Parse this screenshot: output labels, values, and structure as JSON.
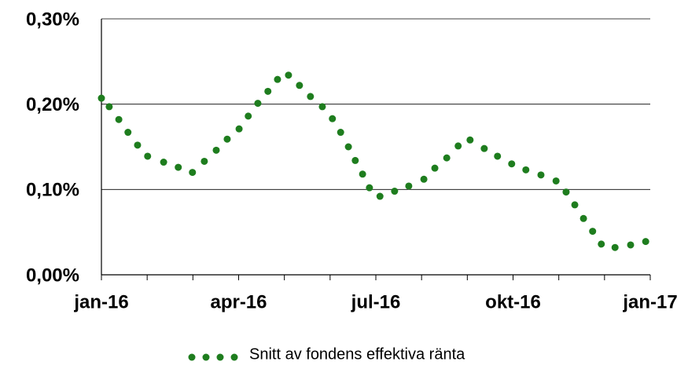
{
  "chart_data": {
    "type": "scatter",
    "xlim": [
      0,
      12
    ],
    "xticks": [
      {
        "value": 0,
        "label": "jan-16"
      },
      1,
      2,
      {
        "value": 3,
        "label": "apr-16"
      },
      4,
      5,
      {
        "value": 6,
        "label": "jul-16"
      },
      7,
      8,
      {
        "value": 9,
        "label": "okt-16"
      },
      10,
      11,
      {
        "value": 12,
        "label": "jan-17"
      }
    ],
    "ylim": [
      0,
      0.3
    ],
    "yticks": [
      {
        "value": 0,
        "label": "0,00%"
      },
      {
        "value": 0.1,
        "label": "0,10%"
      },
      {
        "value": 0.2,
        "label": "0,20%"
      },
      {
        "value": 0.3,
        "label": "0,30%"
      }
    ],
    "grid": true,
    "series": [
      {
        "name": "Snitt av fondens effektiva ränta",
        "color": "#1e7d1e",
        "x": [
          0,
          0.17,
          0.38,
          0.58,
          0.79,
          1.01,
          1.36,
          1.68,
          1.99,
          2.25,
          2.51,
          2.75,
          3.01,
          3.21,
          3.42,
          3.64,
          3.85,
          4.09,
          4.33,
          4.57,
          4.83,
          5.05,
          5.23,
          5.4,
          5.55,
          5.71,
          5.86,
          6.09,
          6.41,
          6.72,
          7.05,
          7.29,
          7.55,
          7.8,
          8.06,
          8.37,
          8.66,
          8.97,
          9.28,
          9.61,
          9.94,
          10.16,
          10.35,
          10.54,
          10.74,
          10.93,
          11.23,
          11.57,
          11.9
        ],
        "values": [
          0.207,
          0.197,
          0.182,
          0.167,
          0.152,
          0.139,
          0.132,
          0.126,
          0.12,
          0.133,
          0.146,
          0.159,
          0.171,
          0.186,
          0.201,
          0.215,
          0.229,
          0.234,
          0.222,
          0.209,
          0.197,
          0.183,
          0.167,
          0.15,
          0.134,
          0.118,
          0.102,
          0.092,
          0.098,
          0.104,
          0.112,
          0.125,
          0.137,
          0.151,
          0.158,
          0.148,
          0.139,
          0.13,
          0.123,
          0.117,
          0.11,
          0.097,
          0.082,
          0.066,
          0.051,
          0.036,
          0.032,
          0.035,
          0.039
        ]
      }
    ]
  }
}
